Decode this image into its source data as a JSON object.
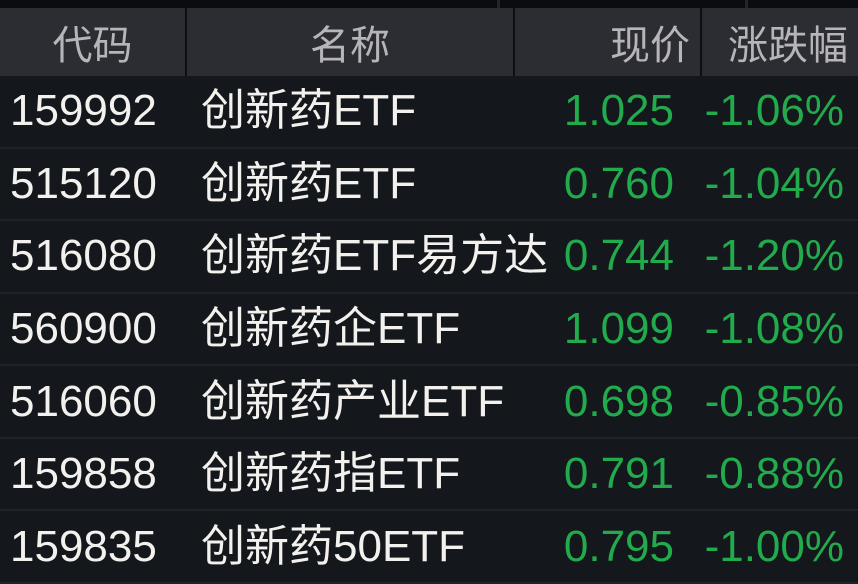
{
  "header": {
    "columns": [
      "代码",
      "名称",
      "现价",
      "涨跌幅"
    ]
  },
  "rows": [
    {
      "code": "159992",
      "name": "创新药ETF",
      "price": "1.025",
      "change": "-1.06%"
    },
    {
      "code": "515120",
      "name": "创新药ETF",
      "price": "0.760",
      "change": "-1.04%"
    },
    {
      "code": "516080",
      "name": "创新药ETF易方达",
      "price": "0.744",
      "change": "-1.20%"
    },
    {
      "code": "560900",
      "name": "创新药企ETF",
      "price": "1.099",
      "change": "-1.08%"
    },
    {
      "code": "516060",
      "name": "创新药产业ETF",
      "price": "0.698",
      "change": "-0.85%"
    },
    {
      "code": "159858",
      "name": "创新药指ETF",
      "price": "0.791",
      "change": "-0.88%"
    },
    {
      "code": "159835",
      "name": "创新药50ETF",
      "price": "0.795",
      "change": "-1.00%"
    }
  ],
  "colors": {
    "value_green": "#21ab4d",
    "body_bg": "#14171c",
    "header_bg": "#2c2c33",
    "header_text": "#b6b6ba",
    "text_primary": "#f3f1ed"
  }
}
